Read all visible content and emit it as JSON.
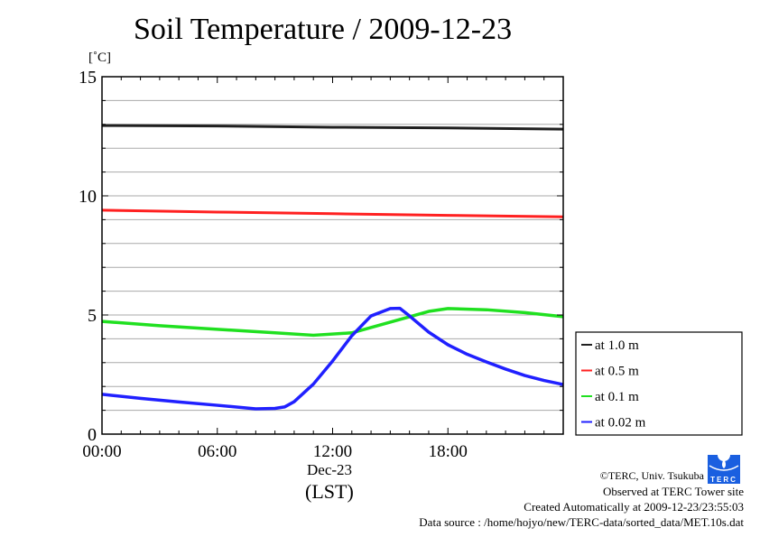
{
  "chart_data": {
    "type": "line",
    "title": "Soil Temperature / 2009-12-23",
    "ylabel": "[˚C]",
    "xlabel": "(LST)",
    "date_label": "Dec-23",
    "ylim": [
      0,
      15
    ],
    "xlim": [
      0,
      24
    ],
    "yticks": [
      {
        "v": 0,
        "label": "0"
      },
      {
        "v": 5,
        "label": "5"
      },
      {
        "v": 10,
        "label": "10"
      },
      {
        "v": 15,
        "label": "15"
      }
    ],
    "xticks": [
      {
        "v": 0,
        "label": "00:00"
      },
      {
        "v": 6,
        "label": "06:00"
      },
      {
        "v": 12,
        "label": "12:00"
      },
      {
        "v": 18,
        "label": "18:00"
      }
    ],
    "grid": true,
    "legend_position": "right-bottom",
    "series": [
      {
        "name": "at 1.0 m",
        "color": "#202020",
        "x": [
          0,
          6,
          12,
          18,
          24
        ],
        "y": [
          12.95,
          12.93,
          12.88,
          12.85,
          12.8
        ]
      },
      {
        "name": "at 0.5 m",
        "color": "#ff2020",
        "x": [
          0,
          6,
          12,
          18,
          24
        ],
        "y": [
          9.4,
          9.32,
          9.25,
          9.18,
          9.12
        ]
      },
      {
        "name": "at 0.1 m",
        "color": "#20e020",
        "x": [
          0,
          3,
          6,
          9,
          11,
          13,
          15,
          17,
          18,
          20,
          22,
          24
        ],
        "y": [
          4.73,
          4.55,
          4.4,
          4.25,
          4.15,
          4.25,
          4.7,
          5.15,
          5.27,
          5.22,
          5.1,
          4.93
        ]
      },
      {
        "name": "at 0.02 m",
        "color": "#2020ff",
        "x": [
          0,
          2,
          4,
          6,
          8,
          9,
          9.5,
          10,
          11,
          12,
          13,
          14,
          15,
          15.5,
          16,
          17,
          18,
          19,
          20,
          21,
          22,
          23,
          24
        ],
        "y": [
          1.67,
          1.5,
          1.35,
          1.21,
          1.06,
          1.08,
          1.14,
          1.36,
          2.1,
          3.07,
          4.13,
          4.96,
          5.27,
          5.28,
          4.96,
          4.28,
          3.75,
          3.35,
          3.03,
          2.73,
          2.46,
          2.25,
          2.08
        ]
      }
    ]
  },
  "footer": {
    "copyright": "©TERC, Univ. Tsukuba",
    "observed": "Observed at TERC Tower site",
    "created": "Created Automatically at 2009-12-23/23:55:03",
    "source": "Data source : /home/hojyo/new/TERC-data/sorted_data/MET.10s.dat",
    "logo_text": "TERC"
  }
}
